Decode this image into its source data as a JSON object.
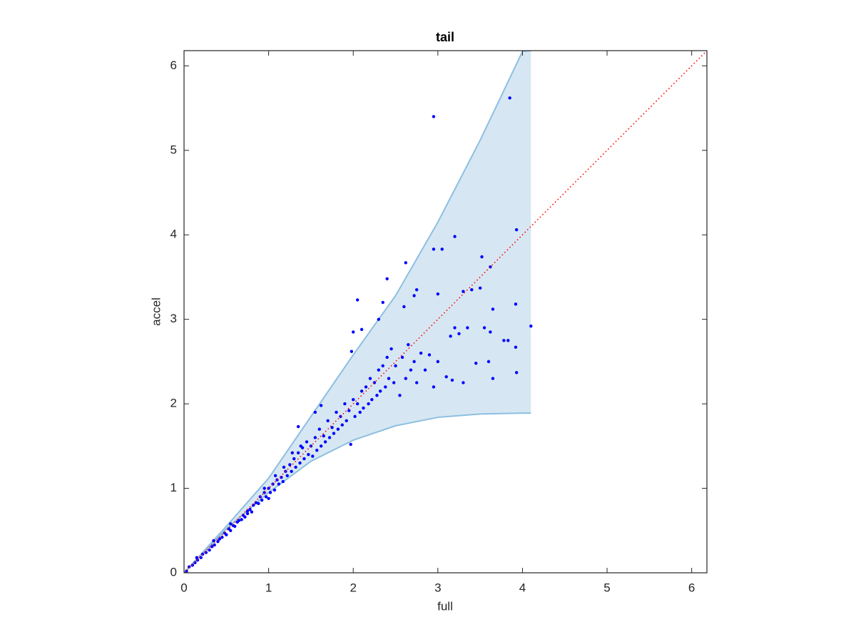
{
  "chart_data": {
    "type": "scatter",
    "title": "tail",
    "x_label": "full",
    "y_label": "accel",
    "x": [
      0.03,
      0.06,
      0.1,
      0.13,
      0.16,
      0.2,
      0.22,
      0.26,
      0.3,
      0.33,
      0.36,
      0.4,
      0.42,
      0.45,
      0.48,
      0.5,
      0.53,
      0.55,
      0.58,
      0.6,
      0.63,
      0.65,
      0.68,
      0.7,
      0.72,
      0.75,
      0.78,
      0.8,
      0.82,
      0.85,
      0.88,
      0.9,
      0.92,
      0.95,
      0.97,
      1.0,
      1.02,
      1.05,
      1.07,
      1.1,
      1.12,
      1.15,
      1.17,
      1.2,
      1.22,
      1.25,
      1.27,
      1.3,
      1.32,
      1.35,
      1.37,
      1.4,
      1.42,
      1.45,
      1.47,
      1.5,
      1.52,
      1.55,
      1.57,
      1.6,
      1.62,
      1.65,
      1.67,
      1.7,
      1.72,
      1.75,
      1.77,
      1.8,
      1.82,
      1.85,
      1.87,
      1.9,
      1.92,
      1.95,
      1.97,
      2.0,
      2.02,
      2.05,
      2.08,
      2.1,
      2.12,
      2.15,
      2.18,
      2.2,
      2.22,
      2.25,
      2.28,
      2.3,
      2.32,
      2.35,
      2.38,
      2.4,
      2.42,
      2.45,
      2.48,
      2.5,
      2.55,
      2.58,
      2.62,
      2.65,
      2.68,
      2.72,
      2.75,
      2.8,
      2.85,
      2.9,
      2.95,
      3.0,
      1.35,
      1.55,
      1.62,
      1.98,
      2.0,
      2.05,
      2.1,
      2.3,
      2.35,
      2.4,
      2.6,
      2.62,
      2.72,
      2.75,
      2.95,
      2.95,
      3.0,
      3.05,
      3.1,
      3.15,
      3.17,
      3.2,
      3.2,
      3.25,
      3.3,
      3.3,
      3.35,
      3.4,
      3.45,
      3.5,
      3.52,
      3.55,
      3.6,
      3.62,
      3.62,
      3.65,
      3.65,
      3.78,
      3.83,
      3.85,
      3.92,
      3.92,
      3.93,
      3.93,
      4.1,
      0.15,
      0.35,
      0.55,
      0.75,
      0.95,
      1.0,
      1.08,
      1.18,
      1.28,
      1.38
    ],
    "values": [
      0.02,
      0.07,
      0.09,
      0.12,
      0.15,
      0.18,
      0.22,
      0.24,
      0.27,
      0.31,
      0.33,
      0.37,
      0.4,
      0.42,
      0.47,
      0.45,
      0.52,
      0.5,
      0.56,
      0.55,
      0.6,
      0.62,
      0.63,
      0.68,
      0.66,
      0.73,
      0.75,
      0.72,
      0.8,
      0.83,
      0.82,
      0.9,
      0.86,
      0.95,
      0.9,
      1.0,
      0.95,
      1.05,
      0.98,
      1.1,
      1.05,
      1.13,
      1.08,
      1.2,
      1.15,
      1.28,
      1.2,
      1.35,
      1.25,
      1.42,
      1.3,
      1.48,
      1.35,
      1.55,
      1.4,
      1.5,
      1.38,
      1.6,
      1.45,
      1.7,
      1.5,
      1.62,
      1.55,
      1.8,
      1.6,
      1.72,
      1.65,
      1.9,
      1.7,
      1.85,
      1.75,
      2.0,
      1.8,
      1.92,
      1.52,
      2.05,
      1.85,
      2.0,
      1.9,
      2.15,
      1.95,
      2.2,
      2.0,
      2.3,
      2.05,
      2.25,
      2.1,
      2.4,
      2.15,
      2.45,
      2.2,
      2.55,
      2.3,
      2.65,
      2.25,
      2.45,
      2.1,
      2.55,
      2.3,
      2.7,
      2.4,
      2.5,
      2.25,
      2.6,
      2.4,
      2.58,
      2.2,
      2.5,
      1.73,
      1.9,
      1.98,
      2.62,
      2.85,
      3.23,
      2.88,
      3.0,
      3.2,
      3.48,
      3.15,
      3.67,
      3.28,
      3.35,
      3.83,
      5.4,
      3.3,
      3.83,
      2.32,
      2.8,
      2.28,
      2.9,
      3.98,
      2.83,
      2.25,
      3.33,
      2.9,
      3.35,
      2.48,
      3.37,
      3.74,
      2.9,
      2.5,
      2.85,
      3.62,
      2.3,
      3.12,
      2.75,
      2.75,
      5.62,
      2.67,
      3.18,
      2.37,
      4.06,
      2.92,
      0.18,
      0.38,
      0.58,
      0.7,
      1.0,
      0.88,
      1.15,
      1.25,
      1.42,
      1.5
    ],
    "color": "#0000ff",
    "xlim": [
      0,
      6.18
    ],
    "ylim": [
      0,
      6.18
    ],
    "xticks": [
      0,
      1,
      2,
      3,
      4,
      5,
      6
    ],
    "yticks": [
      0,
      1,
      2,
      3,
      4,
      5,
      6
    ],
    "box": true,
    "band": {
      "x": [
        0,
        0.5,
        1,
        1.5,
        2,
        2.5,
        3,
        3.5,
        4,
        4.1
      ],
      "upper": [
        0,
        0.55,
        1.12,
        1.85,
        2.58,
        3.28,
        4.15,
        5.12,
        6.17,
        6.18
      ],
      "lower": [
        0,
        0.52,
        0.95,
        1.32,
        1.57,
        1.74,
        1.84,
        1.88,
        1.89,
        1.89
      ],
      "color": "#d6e7f3",
      "edge_color": "#8dbfe0"
    },
    "reference_line": {
      "x": [
        0,
        6.18
      ],
      "values": [
        0,
        6.18
      ],
      "color": "#ff0000"
    }
  }
}
